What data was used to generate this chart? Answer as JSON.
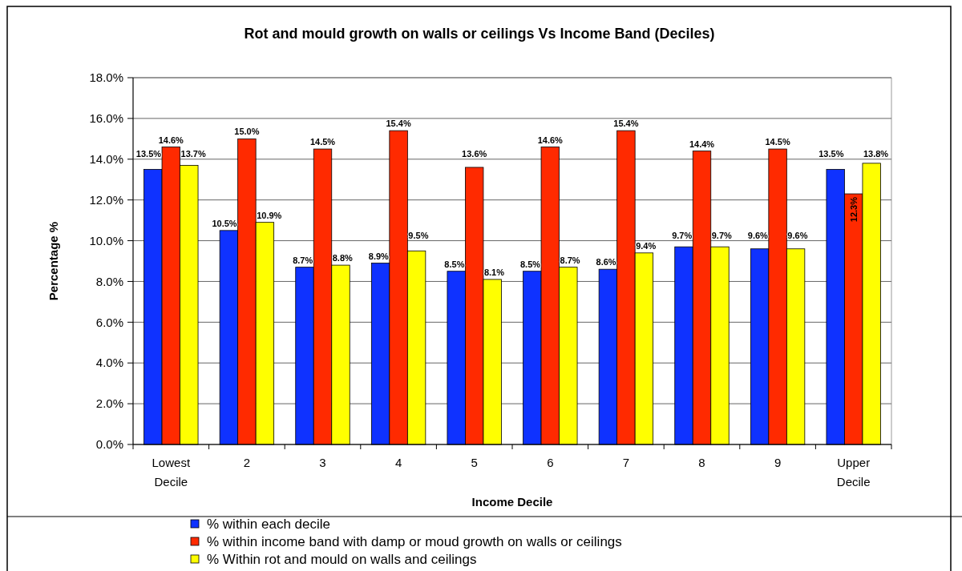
{
  "chart_data": {
    "type": "bar",
    "title": "Rot and mould growth on walls or ceilings Vs Income Band (Deciles)",
    "xlabel": "Income Decile",
    "ylabel": "Percentage %",
    "categories": [
      "Lowest Decile",
      "2",
      "3",
      "4",
      "5",
      "6",
      "7",
      "8",
      "9",
      "Upper Decile"
    ],
    "series": [
      {
        "name": "% within each decile",
        "color": "#0f32ff",
        "values": [
          13.5,
          10.5,
          8.7,
          8.9,
          8.5,
          8.5,
          8.6,
          9.7,
          9.6,
          13.5
        ],
        "value_labels": [
          "13.5%",
          "10.5%",
          "8.7%",
          "8.9%",
          "8.5%",
          "8.5%",
          "8.6%",
          "9.7%",
          "9.6%",
          "13.5%"
        ]
      },
      {
        "name": "% within income band with damp or moud growth on walls or ceilings",
        "color": "#ff2a00",
        "values": [
          14.6,
          15.0,
          14.5,
          15.4,
          13.6,
          14.6,
          15.4,
          14.4,
          14.5,
          12.3
        ],
        "value_labels": [
          "14.6%",
          "15.0%",
          "14.5%",
          "15.4%",
          "13.6%",
          "14.6%",
          "15.4%",
          "14.4%",
          "14.5%",
          "12.3%"
        ]
      },
      {
        "name": "% Within rot and mould on walls and ceilings",
        "color": "#ffff00",
        "values": [
          13.7,
          10.9,
          8.8,
          9.5,
          8.1,
          8.7,
          9.4,
          9.7,
          9.6,
          13.8
        ],
        "value_labels": [
          "13.7%",
          "10.9%",
          "8.8%",
          "9.5%",
          "8.1%",
          "8.7%",
          "9.4%",
          "9.7%",
          "9.6%",
          "13.8%"
        ]
      }
    ],
    "ylim": [
      0,
      18
    ],
    "yticks": [
      {
        "value": 0,
        "label": "0.0%"
      },
      {
        "value": 2,
        "label": "2.0%"
      },
      {
        "value": 4,
        "label": "4.0%"
      },
      {
        "value": 6,
        "label": "6.0%"
      },
      {
        "value": 8,
        "label": "8.0%"
      },
      {
        "value": 10,
        "label": "10.0%"
      },
      {
        "value": 12,
        "label": "12.0%"
      },
      {
        "value": 14,
        "label": "14.0%"
      },
      {
        "value": 16,
        "label": "16.0%"
      },
      {
        "value": 18,
        "label": "18.0%"
      }
    ],
    "grid": "y",
    "legend": "bottom"
  }
}
